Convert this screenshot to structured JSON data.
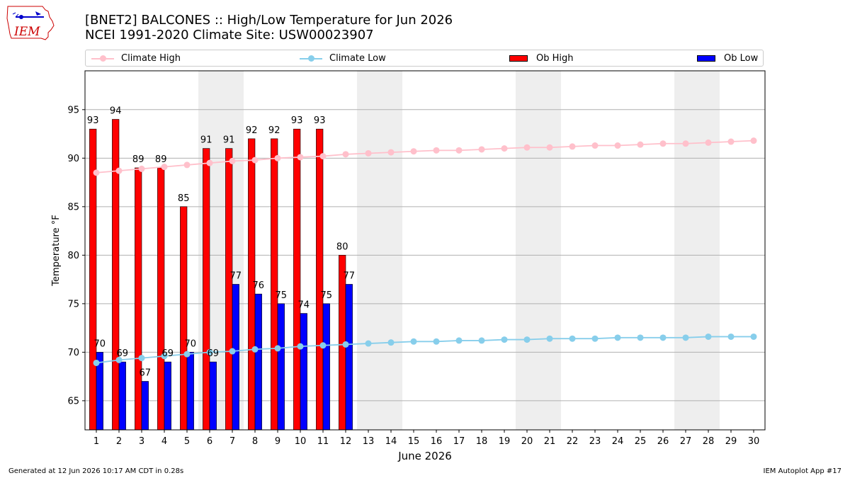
{
  "header": {
    "title_line1": "[BNET2] BALCONES :: High/Low Temperature for Jun 2026",
    "title_line2": "NCEI 1991-2020 Climate Site: USW00023907",
    "logo_text": "IEM"
  },
  "legend": {
    "climate_high": "Climate High",
    "climate_low": "Climate Low",
    "ob_high": "Ob High",
    "ob_low": "Ob Low"
  },
  "colors": {
    "ob_high": "#ff0000",
    "ob_low": "#0000ff",
    "climate_high": "#ffc0cb",
    "climate_low": "#87ceeb",
    "weekend_shade": "#eeeeee",
    "grid": "#b0b0b0"
  },
  "footer": {
    "left": "Generated at 12 Jun 2026 10:17 AM CDT in 0.28s",
    "right": "IEM Autoplot App #17"
  },
  "chart_data": {
    "type": "bar",
    "xlabel": "June 2026",
    "ylabel": "Temperature °F",
    "ylim": [
      62,
      99
    ],
    "xlim": [
      0.5,
      30.5
    ],
    "yticks": [
      65,
      70,
      75,
      80,
      85,
      90,
      95
    ],
    "grid": "horizontal",
    "legend_position": "top",
    "days": [
      1,
      2,
      3,
      4,
      5,
      6,
      7,
      8,
      9,
      10,
      11,
      12,
      13,
      14,
      15,
      16,
      17,
      18,
      19,
      20,
      21,
      22,
      23,
      24,
      25,
      26,
      27,
      28,
      29,
      30
    ],
    "weekend_days": [
      6,
      7,
      13,
      14,
      20,
      21,
      27,
      28
    ],
    "series": [
      {
        "name": "Ob High",
        "kind": "bar",
        "days": [
          1,
          2,
          3,
          4,
          5,
          6,
          7,
          8,
          9,
          10,
          11,
          12
        ],
        "values": [
          93,
          94,
          89,
          89,
          85,
          91,
          91,
          92,
          92,
          93,
          93,
          80
        ]
      },
      {
        "name": "Ob Low",
        "kind": "bar",
        "days": [
          1,
          2,
          3,
          4,
          5,
          6,
          7,
          8,
          9,
          10,
          11,
          12
        ],
        "values": [
          70,
          69,
          67,
          69,
          70,
          69,
          77,
          76,
          75,
          74,
          75,
          77
        ]
      },
      {
        "name": "Climate High",
        "kind": "line",
        "values": [
          88.5,
          88.7,
          88.9,
          89.1,
          89.3,
          89.5,
          89.7,
          89.8,
          90.0,
          90.1,
          90.2,
          90.4,
          90.5,
          90.6,
          90.7,
          90.8,
          90.8,
          90.9,
          91.0,
          91.1,
          91.1,
          91.2,
          91.3,
          91.3,
          91.4,
          91.5,
          91.5,
          91.6,
          91.7,
          91.8
        ]
      },
      {
        "name": "Climate Low",
        "kind": "line",
        "values": [
          68.9,
          69.2,
          69.4,
          69.6,
          69.8,
          70.0,
          70.1,
          70.3,
          70.4,
          70.6,
          70.7,
          70.8,
          70.9,
          71.0,
          71.1,
          71.1,
          71.2,
          71.2,
          71.3,
          71.3,
          71.4,
          71.4,
          71.4,
          71.5,
          71.5,
          71.5,
          71.5,
          71.6,
          71.6,
          71.6
        ]
      }
    ]
  }
}
